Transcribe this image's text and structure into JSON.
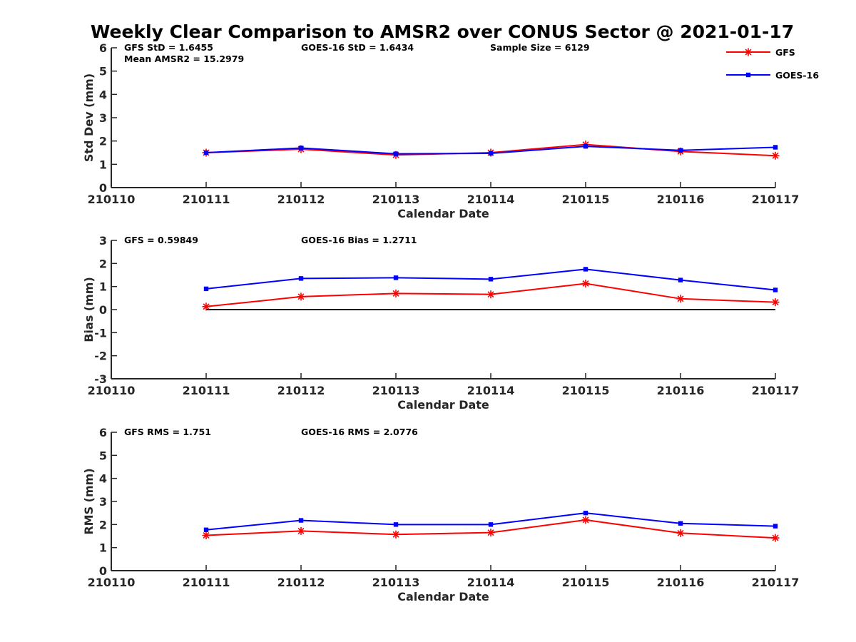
{
  "title": "Weekly Clear Comparison to AMSR2 over CONUS Sector @ 2021-01-17",
  "colors": {
    "GFS": "#ff0000",
    "GOES-16": "#0000ff",
    "axis": "#262626",
    "zero_line": "#000000"
  },
  "legend": {
    "placement": "top-right",
    "entries": [
      {
        "label": "GFS",
        "marker": "asterisk",
        "color": "#ff0000"
      },
      {
        "label": "GOES-16",
        "marker": "square",
        "color": "#0000ff"
      }
    ]
  },
  "chart_data": [
    {
      "type": "line",
      "id": "std",
      "ylabel": "Std Dev (mm)",
      "xlabel": "Calendar Date",
      "ylim": [
        0,
        6
      ],
      "yticks": [
        "0",
        "1",
        "2",
        "3",
        "4",
        "5",
        "6"
      ],
      "x_ticks": [
        "210110",
        "210111",
        "210112",
        "210113",
        "210114",
        "210115",
        "210116",
        "210117"
      ],
      "x": [
        "210111",
        "210112",
        "210113",
        "210114",
        "210115",
        "210116",
        "210117"
      ],
      "zero_line": false,
      "series": [
        {
          "name": "GFS",
          "color": "#ff0000",
          "marker": "asterisk",
          "values": [
            1.5,
            1.65,
            1.4,
            1.5,
            1.85,
            1.55,
            1.37
          ]
        },
        {
          "name": "GOES-16",
          "color": "#0000ff",
          "marker": "square",
          "values": [
            1.5,
            1.7,
            1.45,
            1.47,
            1.77,
            1.6,
            1.73
          ]
        }
      ],
      "annotations": [
        {
          "text": "GFS StD = 1.6455",
          "slot": "left"
        },
        {
          "text": "GOES-16 StD = 1.6434",
          "slot": "middle"
        },
        {
          "text": "Sample Size = 6129",
          "slot": "right"
        },
        {
          "text": "Mean AMSR2 = 15.2979",
          "slot": "left-second-line"
        }
      ]
    },
    {
      "type": "line",
      "id": "bias",
      "ylabel": "Bias (mm)",
      "xlabel": "Calendar Date",
      "ylim": [
        -3,
        3
      ],
      "yticks": [
        "-3",
        "-2",
        "-1",
        "0",
        "1",
        "2",
        "3"
      ],
      "x_ticks": [
        "210110",
        "210111",
        "210112",
        "210113",
        "210114",
        "210115",
        "210116",
        "210117"
      ],
      "x": [
        "210111",
        "210112",
        "210113",
        "210114",
        "210115",
        "210116",
        "210117"
      ],
      "zero_line": true,
      "series": [
        {
          "name": "GFS",
          "color": "#ff0000",
          "marker": "asterisk",
          "values": [
            0.13,
            0.56,
            0.7,
            0.66,
            1.13,
            0.47,
            0.32
          ]
        },
        {
          "name": "GOES-16",
          "color": "#0000ff",
          "marker": "square",
          "values": [
            0.9,
            1.35,
            1.38,
            1.32,
            1.75,
            1.28,
            0.85
          ]
        }
      ],
      "annotations": [
        {
          "text": "GFS = 0.59849",
          "slot": "left"
        },
        {
          "text": "GOES-16 Bias  = 1.2711",
          "slot": "middle"
        }
      ]
    },
    {
      "type": "line",
      "id": "rms",
      "ylabel": "RMS (mm)",
      "xlabel": "Calendar Date",
      "ylim": [
        0,
        6
      ],
      "yticks": [
        "0",
        "1",
        "2",
        "3",
        "4",
        "5",
        "6"
      ],
      "x_ticks": [
        "210110",
        "210111",
        "210112",
        "210113",
        "210114",
        "210115",
        "210116",
        "210117"
      ],
      "x": [
        "210111",
        "210112",
        "210113",
        "210114",
        "210115",
        "210116",
        "210117"
      ],
      "zero_line": false,
      "series": [
        {
          "name": "GFS",
          "color": "#ff0000",
          "marker": "asterisk",
          "values": [
            1.53,
            1.72,
            1.57,
            1.65,
            2.2,
            1.63,
            1.42
          ]
        },
        {
          "name": "GOES-16",
          "color": "#0000ff",
          "marker": "square",
          "values": [
            1.77,
            2.18,
            2.0,
            2.0,
            2.5,
            2.05,
            1.93
          ]
        }
      ],
      "annotations": [
        {
          "text": "GFS RMS = 1.751",
          "slot": "left"
        },
        {
          "text": "GOES-16 RMS = 2.0776",
          "slot": "middle"
        }
      ]
    }
  ]
}
